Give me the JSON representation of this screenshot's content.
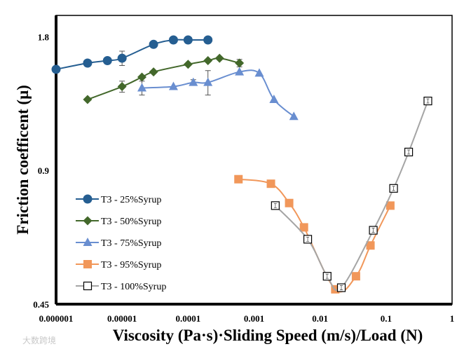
{
  "chart_data": {
    "type": "line",
    "title": "",
    "xlabel": "Viscosity (Pa·s)·Sliding Speed (m/s)/Load (N)",
    "ylabel": "Friction coefficent (μ)",
    "xscale": "log",
    "yscale": "log",
    "xlim": [
      1e-06,
      1
    ],
    "ylim": [
      0.45,
      2.01
    ],
    "xticks": [
      1e-06,
      1e-05,
      0.0001,
      0.001,
      0.01,
      0.1,
      1
    ],
    "xtick_labels": [
      "0.000001",
      "0.00001",
      "0.0001",
      "0.001",
      "0.01",
      "0.1",
      "1"
    ],
    "yticks": [
      0.45,
      0.9,
      1.8
    ],
    "ytick_labels": [
      "0.45",
      "0.9",
      "1.8"
    ],
    "grid": false,
    "legend_position": "left-bottom",
    "series": [
      {
        "name": "T3 - 25%Syrup",
        "color": "#255e91",
        "marker": "circle",
        "x": [
          1e-06,
          3e-06,
          6e-06,
          1e-05,
          3e-05,
          6e-05,
          0.0001,
          0.0002
        ],
        "y": [
          1.52,
          1.57,
          1.59,
          1.61,
          1.73,
          1.77,
          1.77,
          1.77
        ],
        "err": [
          0,
          0,
          0,
          0.06,
          0,
          0,
          0,
          0
        ]
      },
      {
        "name": "T3 - 50%Syrup",
        "color": "#43682b",
        "marker": "diamond",
        "x": [
          3e-06,
          1e-05,
          2e-05,
          3e-05,
          0.0001,
          0.0002,
          0.0003,
          0.0006
        ],
        "y": [
          1.3,
          1.39,
          1.46,
          1.5,
          1.56,
          1.59,
          1.61,
          1.57
        ],
        "err": [
          0,
          0.04,
          0,
          0,
          0,
          0,
          0,
          0.03
        ]
      },
      {
        "name": "T3 - 75%Syrup",
        "color": "#698ed0",
        "marker": "triangle",
        "x": [
          2e-05,
          6e-05,
          0.00012,
          0.0002,
          0.0006,
          0.0012,
          0.002,
          0.004
        ],
        "y": [
          1.38,
          1.39,
          1.42,
          1.42,
          1.5,
          1.49,
          1.3,
          1.19
        ],
        "err": [
          0.05,
          0,
          0.02,
          0.09,
          0,
          0,
          0,
          0
        ]
      },
      {
        "name": "T3 - 95%Syrup",
        "color": "#f1975a",
        "marker": "square",
        "x": [
          0.00058,
          0.0018,
          0.0034,
          0.0057,
          0.017,
          0.035,
          0.058,
          0.116
        ],
        "y": [
          0.86,
          0.84,
          0.76,
          0.67,
          0.486,
          0.52,
          0.61,
          0.75
        ],
        "err": [
          0,
          0,
          0,
          0,
          0,
          0,
          0,
          0
        ]
      },
      {
        "name": "T3 - 100%Syrup",
        "color": "#a5a5a5",
        "marker": "open-square",
        "x": [
          0.0021,
          0.0065,
          0.0128,
          0.021,
          0.064,
          0.13,
          0.22,
          0.43
        ],
        "y": [
          0.75,
          0.63,
          0.52,
          0.49,
          0.66,
          0.82,
          0.99,
          1.29
        ],
        "err": [
          0.01,
          0.01,
          0.01,
          0.005,
          0.01,
          0.01,
          0.005,
          0.003
        ]
      }
    ]
  },
  "watermark": "大数跨境"
}
